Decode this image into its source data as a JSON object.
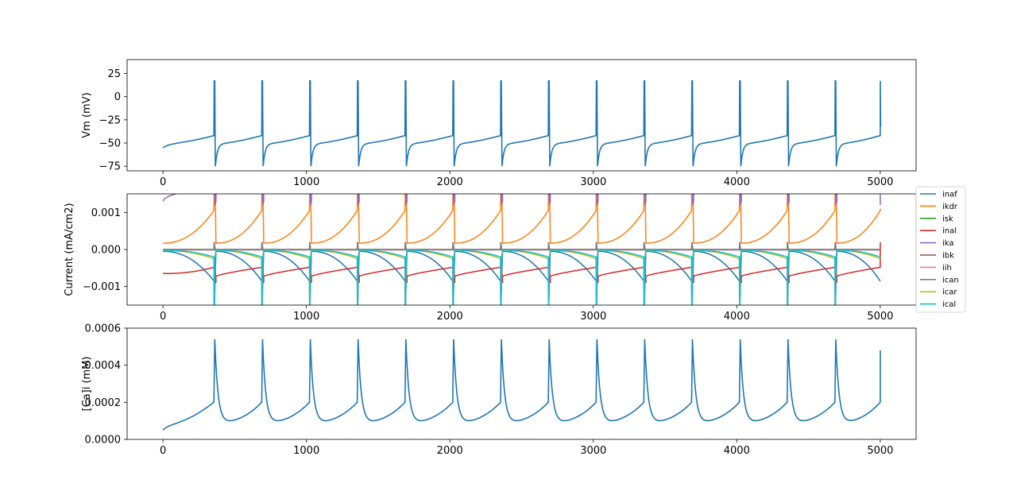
{
  "chart_data": [
    {
      "type": "line",
      "ylabel": "Vm (mV)",
      "xlim": [
        -250,
        5250
      ],
      "ylim": [
        -80,
        40
      ],
      "xticks": [
        0,
        1000,
        2000,
        3000,
        4000,
        5000
      ],
      "xtick_labels": [
        "0",
        "1000",
        "2000",
        "3000",
        "4000",
        "5000"
      ],
      "yticks": [
        -75,
        -50,
        -25,
        0,
        25
      ],
      "ytick_labels": [
        "−75",
        "−50",
        "−25",
        "0",
        "25"
      ],
      "spike_times": [
        355,
        688,
        1021,
        1354,
        1687,
        2020,
        2353,
        2686,
        3019,
        3352,
        3685,
        4018,
        4351,
        4684,
        5000
      ],
      "series": [
        {
          "color": "#1f77b4",
          "baseline_start": -55,
          "pre_spike": -42,
          "peak": 17,
          "trough": -75,
          "post_spike_plateau": -51
        }
      ]
    },
    {
      "type": "line",
      "ylabel": "Current (mA/cm2)",
      "xlim": [
        -250,
        5250
      ],
      "ylim": [
        -0.0015,
        0.0015
      ],
      "xticks": [
        0,
        1000,
        2000,
        3000,
        4000,
        5000
      ],
      "xtick_labels": [
        "0",
        "1000",
        "2000",
        "3000",
        "4000",
        "5000"
      ],
      "yticks": [
        -0.001,
        0,
        0.001
      ],
      "ytick_labels": [
        "−0.001",
        "0.000",
        "0.001"
      ],
      "legend_position": "outside-right",
      "series": [
        {
          "name": "inaf",
          "color": "#1f77b4",
          "start": -5e-05,
          "pre_spike": -0.00085
        },
        {
          "name": "ikdr",
          "color": "#ff7f0e",
          "start": 0.00017,
          "pre_spike": 0.00105
        },
        {
          "name": "isk",
          "color": "#2ca02c",
          "start": -1e-05,
          "pre_spike": -1e-05
        },
        {
          "name": "inal",
          "color": "#d62728",
          "start": -0.00065,
          "pre_spike": -0.00048
        },
        {
          "name": "ika",
          "color": "#9467bd",
          "start": 0.0013,
          "pre_spike": 0.0012
        },
        {
          "name": "ibk",
          "color": "#8c564b",
          "start": 0.0,
          "pre_spike": 0.0
        },
        {
          "name": "iih",
          "color": "#e377c2",
          "start": -1e-05,
          "pre_spike": -1e-05
        },
        {
          "name": "ican",
          "color": "#7f7f7f",
          "start": 0.0,
          "pre_spike": 0.0
        },
        {
          "name": "icar",
          "color": "#bcbd22",
          "start": -3e-05,
          "pre_spike": -0.00025
        },
        {
          "name": "ical",
          "color": "#17becf",
          "start": -2e-05,
          "pre_spike": -0.0002
        }
      ]
    },
    {
      "type": "line",
      "ylabel": "[Ca]i (mM)",
      "xlim": [
        -250,
        5250
      ],
      "ylim": [
        0,
        0.0006
      ],
      "xticks": [
        0,
        1000,
        2000,
        3000,
        4000,
        5000
      ],
      "xtick_labels": [
        "0",
        "1000",
        "2000",
        "3000",
        "4000",
        "5000"
      ],
      "yticks": [
        0,
        0.0002,
        0.0004,
        0.0006
      ],
      "ytick_labels": [
        "0.0000",
        "0.0002",
        "0.0004",
        "0.0006"
      ],
      "series": [
        {
          "color": "#1f77b4",
          "start": 5e-05,
          "pre_spike": 0.0002,
          "peak": 0.00054,
          "trough": 9e-05,
          "final": 0.00048
        }
      ]
    }
  ]
}
